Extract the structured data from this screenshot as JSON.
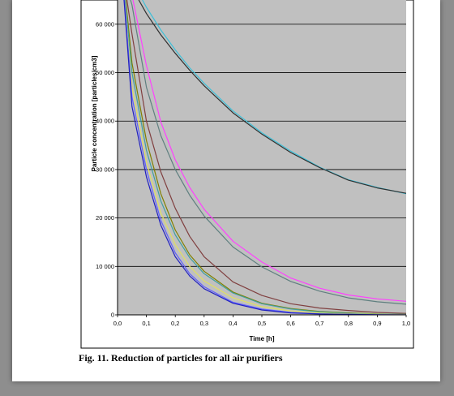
{
  "caption": "Fig. 11. Reduction of particles for all air purifiers",
  "chart_data": {
    "type": "line",
    "title": "",
    "xlabel": "Time [h]",
    "ylabel": "Particle concentration  [particles/cm3]",
    "xlim": [
      0,
      1.0
    ],
    "ylim": [
      0,
      65000
    ],
    "x_ticks": [
      "0,0",
      "0,1",
      "0,2",
      "0,3",
      "0,4",
      "0,5",
      "0,6",
      "0,7",
      "0,8",
      "0,9",
      "1,0"
    ],
    "y_ticks": [
      {
        "value": 0,
        "label": "0"
      },
      {
        "value": 10000,
        "label": "10 000"
      },
      {
        "value": 20000,
        "label": "20 000"
      },
      {
        "value": 30000,
        "label": "30 000"
      },
      {
        "value": 40000,
        "label": "40 000"
      },
      {
        "value": 50000,
        "label": "50 000"
      },
      {
        "value": 60000,
        "label": "60 000"
      }
    ],
    "grid": true,
    "plot_background": "#c0c0c0",
    "x": [
      0.02,
      0.05,
      0.1,
      0.15,
      0.2,
      0.25,
      0.3,
      0.4,
      0.5,
      0.6,
      0.7,
      0.8,
      0.9,
      1.0
    ],
    "series": [
      {
        "color": "#40c0d8",
        "values": [
          70000,
          69000,
          63500,
          58800,
          54700,
          51000,
          47800,
          42100,
          37600,
          33800,
          30500,
          27900,
          26300,
          25000
        ]
      },
      {
        "color": "#303030",
        "values": [
          69000,
          67500,
          62200,
          57800,
          54000,
          50500,
          47300,
          41700,
          37300,
          33500,
          30400,
          27800,
          26200,
          25100
        ]
      },
      {
        "color": "#ff40ff",
        "values": [
          70000,
          66000,
          51500,
          39800,
          32000,
          26300,
          21800,
          15200,
          10900,
          7600,
          5500,
          4100,
          3300,
          2800
        ]
      },
      {
        "color": "#608080",
        "values": [
          70000,
          64000,
          47000,
          37000,
          30000,
          24700,
          20400,
          14000,
          9900,
          6900,
          4900,
          3500,
          2700,
          2200
        ]
      },
      {
        "color": "#804040",
        "values": [
          70000,
          58000,
          40000,
          29500,
          22000,
          16200,
          12000,
          6800,
          4000,
          2300,
          1400,
          900,
          500,
          300
        ]
      },
      {
        "color": "#808000",
        "values": [
          70000,
          52000,
          36000,
          25000,
          17500,
          12400,
          9000,
          4700,
          2400,
          1300,
          700,
          400,
          200,
          100
        ]
      },
      {
        "color": "#40a0a0",
        "values": [
          69000,
          50000,
          34000,
          23500,
          16500,
          11800,
          8500,
          4500,
          2300,
          1200,
          600,
          300,
          150,
          100
        ]
      },
      {
        "color": "#e0e060",
        "values": [
          68000,
          47000,
          31500,
          21000,
          14500,
          10000,
          7000,
          3500,
          1700,
          800,
          400,
          200,
          100,
          50
        ]
      },
      {
        "color": "#6060ff",
        "values": [
          68000,
          45000,
          30000,
          19500,
          12800,
          8500,
          5800,
          2600,
          1200,
          500,
          200,
          100,
          50,
          0
        ]
      },
      {
        "color": "#2020c0",
        "values": [
          67000,
          43000,
          28500,
          18500,
          12000,
          8000,
          5400,
          2400,
          1000,
          400,
          200,
          100,
          0,
          0
        ]
      }
    ]
  }
}
